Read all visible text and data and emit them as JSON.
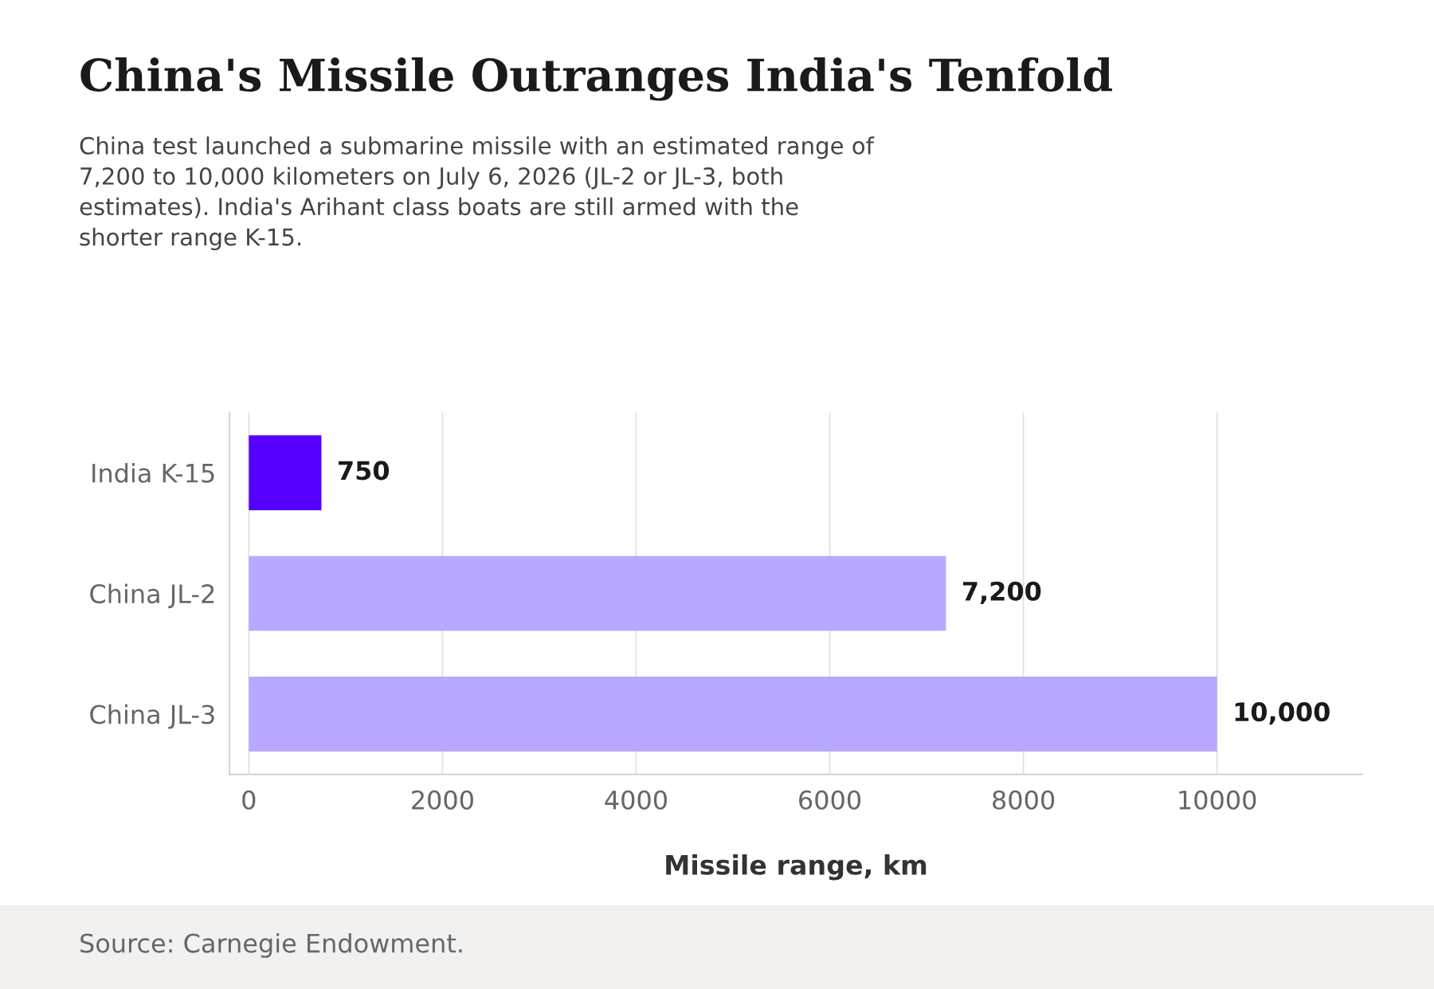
{
  "chart_data": {
    "type": "bar",
    "orientation": "horizontal",
    "title": "China's Missile Outranges India's Tenfold",
    "subtitle": "China test launched a submarine missile with an estimated range of\n7,200 to 10,000 kilometers on July 6, 2026 (JL-2 or JL-3, both\nestimates). India's Arihant class boats are still armed with the\nshorter range K-15.",
    "categories": [
      "India K-15",
      "China JL-2",
      "China JL-3"
    ],
    "values": [
      750,
      7200,
      10000
    ],
    "colors": [
      "#5500ff",
      "#b8a8ff",
      "#b8a8ff"
    ],
    "value_labels": [
      "750",
      "7,200",
      "10,000"
    ],
    "xlabel": "Missile range, km",
    "xlim": [
      -200,
      11500
    ],
    "xticks": [
      0,
      2000,
      4000,
      6000,
      8000,
      10000
    ],
    "grid": "x",
    "legend": false,
    "annotations": [
      "Source: Carnegie Endowment."
    ]
  }
}
